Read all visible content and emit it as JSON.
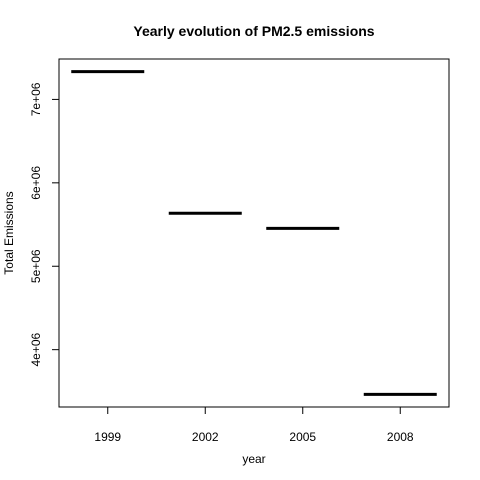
{
  "chart_data": {
    "type": "bar",
    "title": "Yearly evolution of PM2.5 emissions",
    "xlabel": "year",
    "ylabel": "Total Emissions",
    "categories": [
      "1999",
      "2002",
      "2005",
      "2008"
    ],
    "values": [
      7332967,
      5635780,
      5454703,
      3464206
    ],
    "y_ticks": [
      {
        "value": 4000000,
        "label": "4e+06"
      },
      {
        "value": 5000000,
        "label": "5e+06"
      },
      {
        "value": 6000000,
        "label": "6e+06"
      },
      {
        "value": 7000000,
        "label": "7e+06"
      }
    ],
    "ylim": [
      3312656,
      7484517
    ],
    "grid": false,
    "legend": "none",
    "bar_color": "#000000"
  }
}
